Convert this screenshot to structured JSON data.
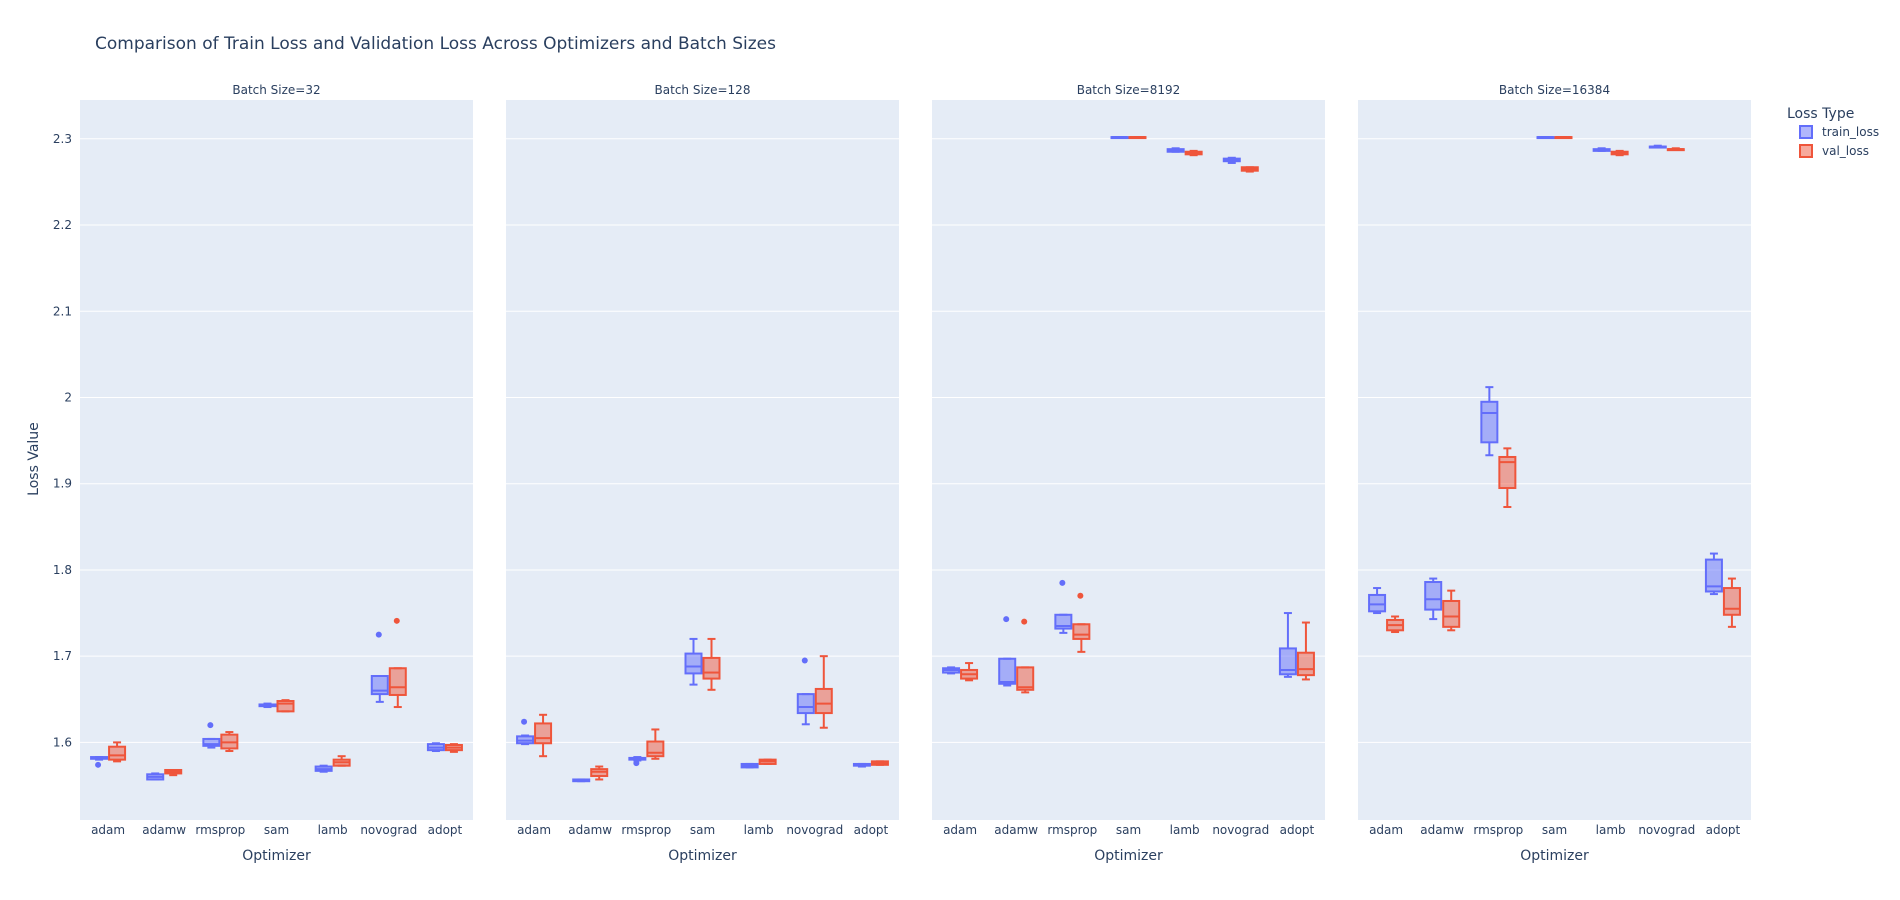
{
  "chart_data": {
    "type": "box",
    "title": "Comparison of Train Loss and Validation Loss Across Optimizers and Batch Sizes",
    "xlabel": "Optimizer",
    "ylabel": "Loss Value",
    "ylim": [
      1.51,
      2.345
    ],
    "yticks": [
      1.6,
      1.7,
      1.8,
      1.9,
      2,
      2.1,
      2.2,
      2.3
    ],
    "ytick_labels": [
      "1.6",
      "1.7",
      "1.8",
      "1.9",
      "2",
      "2.1",
      "2.2",
      "2.3"
    ],
    "grid": true,
    "legend_title": "Loss Type",
    "legend_position": "top-right",
    "categories": [
      "adam",
      "adamw",
      "rmsprop",
      "sam",
      "lamb",
      "novograd",
      "adopt"
    ],
    "series_colors": {
      "train_loss": "#636efa",
      "val_loss": "#ef553b"
    },
    "series": [
      {
        "name": "train_loss"
      },
      {
        "name": "val_loss"
      }
    ],
    "facets": [
      {
        "title": "Batch Size=32",
        "boxes": {
          "train_loss": [
            {
              "min": 1.58,
              "q1": 1.581,
              "median": 1.582,
              "q3": 1.583,
              "max": 1.583,
              "outliers": [
                1.574
              ]
            },
            {
              "min": 1.557,
              "q1": 1.557,
              "median": 1.56,
              "q3": 1.563,
              "max": 1.564,
              "outliers": []
            },
            {
              "min": 1.594,
              "q1": 1.596,
              "median": 1.598,
              "q3": 1.604,
              "max": 1.604,
              "outliers": [
                1.62
              ]
            },
            {
              "min": 1.641,
              "q1": 1.642,
              "median": 1.643,
              "q3": 1.644,
              "max": 1.645,
              "outliers": []
            },
            {
              "min": 1.566,
              "q1": 1.567,
              "median": 1.569,
              "q3": 1.572,
              "max": 1.573,
              "outliers": []
            },
            {
              "min": 1.647,
              "q1": 1.656,
              "median": 1.66,
              "q3": 1.677,
              "max": 1.677,
              "outliers": [
                1.725
              ]
            },
            {
              "min": 1.59,
              "q1": 1.591,
              "median": 1.594,
              "q3": 1.598,
              "max": 1.599,
              "outliers": []
            }
          ],
          "val_loss": [
            {
              "min": 1.578,
              "q1": 1.58,
              "median": 1.585,
              "q3": 1.595,
              "max": 1.6,
              "outliers": []
            },
            {
              "min": 1.562,
              "q1": 1.564,
              "median": 1.566,
              "q3": 1.568,
              "max": 1.568,
              "outliers": []
            },
            {
              "min": 1.59,
              "q1": 1.593,
              "median": 1.6,
              "q3": 1.609,
              "max": 1.612,
              "outliers": []
            },
            {
              "min": 1.636,
              "q1": 1.636,
              "median": 1.645,
              "q3": 1.648,
              "max": 1.649,
              "outliers": []
            },
            {
              "min": 1.573,
              "q1": 1.573,
              "median": 1.577,
              "q3": 1.58,
              "max": 1.584,
              "outliers": []
            },
            {
              "min": 1.641,
              "q1": 1.655,
              "median": 1.664,
              "q3": 1.686,
              "max": 1.686,
              "outliers": [
                1.741
              ]
            },
            {
              "min": 1.589,
              "q1": 1.591,
              "median": 1.594,
              "q3": 1.597,
              "max": 1.598,
              "outliers": []
            }
          ]
        }
      },
      {
        "title": "Batch Size=128",
        "boxes": {
          "train_loss": [
            {
              "min": 1.598,
              "q1": 1.599,
              "median": 1.602,
              "q3": 1.607,
              "max": 1.608,
              "outliers": [
                1.624
              ]
            },
            {
              "min": 1.555,
              "q1": 1.555,
              "median": 1.556,
              "q3": 1.557,
              "max": 1.557,
              "outliers": []
            },
            {
              "min": 1.579,
              "q1": 1.58,
              "median": 1.581,
              "q3": 1.582,
              "max": 1.583,
              "outliers": [
                1.576
              ]
            },
            {
              "min": 1.667,
              "q1": 1.68,
              "median": 1.688,
              "q3": 1.703,
              "max": 1.72,
              "outliers": []
            },
            {
              "min": 1.571,
              "q1": 1.571,
              "median": 1.573,
              "q3": 1.575,
              "max": 1.575,
              "outliers": []
            },
            {
              "min": 1.621,
              "q1": 1.634,
              "median": 1.641,
              "q3": 1.656,
              "max": 1.656,
              "outliers": [
                1.695
              ]
            },
            {
              "min": 1.572,
              "q1": 1.573,
              "median": 1.574,
              "q3": 1.575,
              "max": 1.575,
              "outliers": []
            }
          ],
          "val_loss": [
            {
              "min": 1.584,
              "q1": 1.599,
              "median": 1.605,
              "q3": 1.622,
              "max": 1.632,
              "outliers": []
            },
            {
              "min": 1.557,
              "q1": 1.561,
              "median": 1.566,
              "q3": 1.569,
              "max": 1.572,
              "outliers": []
            },
            {
              "min": 1.581,
              "q1": 1.584,
              "median": 1.588,
              "q3": 1.601,
              "max": 1.615,
              "outliers": []
            },
            {
              "min": 1.661,
              "q1": 1.674,
              "median": 1.681,
              "q3": 1.698,
              "max": 1.72,
              "outliers": []
            },
            {
              "min": 1.575,
              "q1": 1.575,
              "median": 1.578,
              "q3": 1.58,
              "max": 1.58,
              "outliers": []
            },
            {
              "min": 1.617,
              "q1": 1.634,
              "median": 1.645,
              "q3": 1.662,
              "max": 1.7,
              "outliers": []
            },
            {
              "min": 1.574,
              "q1": 1.574,
              "median": 1.576,
              "q3": 1.578,
              "max": 1.578,
              "outliers": []
            }
          ]
        }
      },
      {
        "title": "Batch Size=8192",
        "boxes": {
          "train_loss": [
            {
              "min": 1.68,
              "q1": 1.681,
              "median": 1.684,
              "q3": 1.686,
              "max": 1.687,
              "outliers": []
            },
            {
              "min": 1.666,
              "q1": 1.668,
              "median": 1.67,
              "q3": 1.697,
              "max": 1.697,
              "outliers": [
                1.743
              ]
            },
            {
              "min": 1.727,
              "q1": 1.732,
              "median": 1.735,
              "q3": 1.748,
              "max": 1.748,
              "outliers": [
                1.785
              ]
            },
            {
              "min": 2.302,
              "q1": 2.302,
              "median": 2.302,
              "q3": 2.302,
              "max": 2.302,
              "outliers": []
            },
            {
              "min": 2.285,
              "q1": 2.285,
              "median": 2.287,
              "q3": 2.288,
              "max": 2.289,
              "outliers": []
            },
            {
              "min": 2.272,
              "q1": 2.274,
              "median": 2.275,
              "q3": 2.277,
              "max": 2.278,
              "outliers": []
            },
            {
              "min": 1.676,
              "q1": 1.679,
              "median": 1.684,
              "q3": 1.709,
              "max": 1.75,
              "outliers": []
            }
          ],
          "val_loss": [
            {
              "min": 1.672,
              "q1": 1.674,
              "median": 1.679,
              "q3": 1.684,
              "max": 1.692,
              "outliers": []
            },
            {
              "min": 1.658,
              "q1": 1.661,
              "median": 1.664,
              "q3": 1.687,
              "max": 1.687,
              "outliers": [
                1.74
              ]
            },
            {
              "min": 1.705,
              "q1": 1.72,
              "median": 1.725,
              "q3": 1.737,
              "max": 1.737,
              "outliers": [
                1.77
              ]
            },
            {
              "min": 2.302,
              "q1": 2.302,
              "median": 2.302,
              "q3": 2.302,
              "max": 2.302,
              "outliers": []
            },
            {
              "min": 2.281,
              "q1": 2.282,
              "median": 2.283,
              "q3": 2.285,
              "max": 2.286,
              "outliers": []
            },
            {
              "min": 2.262,
              "q1": 2.263,
              "median": 2.265,
              "q3": 2.267,
              "max": 2.267,
              "outliers": []
            },
            {
              "min": 1.673,
              "q1": 1.678,
              "median": 1.685,
              "q3": 1.704,
              "max": 1.739,
              "outliers": []
            }
          ]
        }
      },
      {
        "title": "Batch Size=16384",
        "boxes": {
          "train_loss": [
            {
              "min": 1.75,
              "q1": 1.752,
              "median": 1.76,
              "q3": 1.771,
              "max": 1.779,
              "outliers": []
            },
            {
              "min": 1.743,
              "q1": 1.754,
              "median": 1.766,
              "q3": 1.786,
              "max": 1.79,
              "outliers": []
            },
            {
              "min": 1.933,
              "q1": 1.948,
              "median": 1.982,
              "q3": 1.995,
              "max": 2.012,
              "outliers": []
            },
            {
              "min": 2.302,
              "q1": 2.302,
              "median": 2.302,
              "q3": 2.302,
              "max": 2.302,
              "outliers": []
            },
            {
              "min": 2.286,
              "q1": 2.286,
              "median": 2.287,
              "q3": 2.288,
              "max": 2.289,
              "outliers": []
            },
            {
              "min": 2.29,
              "q1": 2.29,
              "median": 2.291,
              "q3": 2.291,
              "max": 2.292,
              "outliers": []
            },
            {
              "min": 1.772,
              "q1": 1.775,
              "median": 1.781,
              "q3": 1.812,
              "max": 1.819,
              "outliers": []
            }
          ],
          "val_loss": [
            {
              "min": 1.728,
              "q1": 1.73,
              "median": 1.736,
              "q3": 1.742,
              "max": 1.746,
              "outliers": []
            },
            {
              "min": 1.73,
              "q1": 1.734,
              "median": 1.746,
              "q3": 1.764,
              "max": 1.776,
              "outliers": []
            },
            {
              "min": 1.873,
              "q1": 1.895,
              "median": 1.925,
              "q3": 1.931,
              "max": 1.941,
              "outliers": []
            },
            {
              "min": 2.302,
              "q1": 2.302,
              "median": 2.302,
              "q3": 2.302,
              "max": 2.302,
              "outliers": []
            },
            {
              "min": 2.281,
              "q1": 2.282,
              "median": 2.283,
              "q3": 2.285,
              "max": 2.286,
              "outliers": []
            },
            {
              "min": 2.287,
              "q1": 2.287,
              "median": 2.288,
              "q3": 2.288,
              "max": 2.289,
              "outliers": []
            },
            {
              "min": 1.734,
              "q1": 1.748,
              "median": 1.755,
              "q3": 1.779,
              "max": 1.79,
              "outliers": []
            }
          ]
        }
      }
    ]
  }
}
